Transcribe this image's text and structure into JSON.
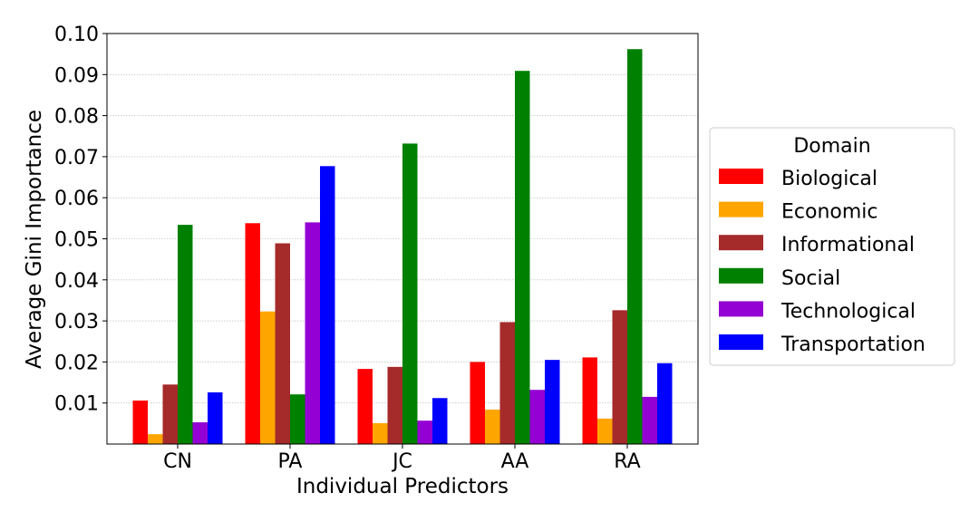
{
  "chart_data": {
    "type": "bar",
    "title": "",
    "xlabel": "Individual Predictors",
    "ylabel": "Average Gini Importance",
    "categories": [
      "CN",
      "PA",
      "JC",
      "AA",
      "RA"
    ],
    "ylim": [
      0,
      0.1
    ],
    "yticks": [
      0.01,
      0.02,
      0.03,
      0.04,
      0.05,
      0.06,
      0.07,
      0.08,
      0.09,
      0.1
    ],
    "ytick_labels": [
      "0.01",
      "0.02",
      "0.03",
      "0.04",
      "0.05",
      "0.06",
      "0.07",
      "0.08",
      "0.09",
      "0.10"
    ],
    "grid": "horizontal dotted",
    "legend_title": "Domain",
    "legend_position": "right",
    "series": [
      {
        "name": "Biological",
        "color": "#ff0000",
        "values": [
          0.0106,
          0.0538,
          0.0183,
          0.02,
          0.0211
        ]
      },
      {
        "name": "Economic",
        "color": "#ffa500",
        "values": [
          0.0024,
          0.0323,
          0.0051,
          0.0084,
          0.0062
        ]
      },
      {
        "name": "Informational",
        "color": "#a52a2a",
        "values": [
          0.0145,
          0.0489,
          0.0188,
          0.0297,
          0.0326
        ]
      },
      {
        "name": "Social",
        "color": "#008000",
        "values": [
          0.0534,
          0.0121,
          0.0732,
          0.0909,
          0.0962
        ]
      },
      {
        "name": "Technological",
        "color": "#9400d3",
        "values": [
          0.0053,
          0.054,
          0.0057,
          0.0132,
          0.0115
        ]
      },
      {
        "name": "Transportation",
        "color": "#0000ff",
        "values": [
          0.0126,
          0.0677,
          0.0112,
          0.0205,
          0.0197
        ]
      }
    ]
  }
}
